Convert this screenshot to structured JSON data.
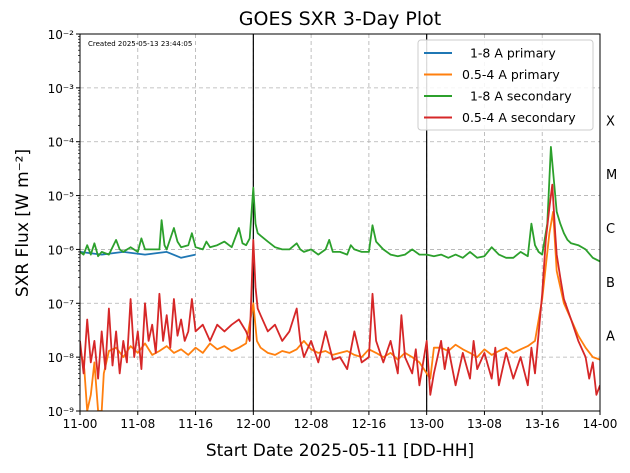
{
  "chart_data": {
    "type": "line",
    "title": "GOES SXR 3-Day Plot",
    "xlabel": "Start Date 2025-05-11 [DD-HH]",
    "ylabel": "SXR Flux [W m⁻²]",
    "created_note": "Created 2025-05-13 23:44:05",
    "yscale": "log",
    "ylim": [
      1e-09,
      0.01
    ],
    "xlim_hours": [
      0,
      72
    ],
    "grid": true,
    "legend_position": "top-right",
    "x_ticks": [
      {
        "h": 0,
        "label": "11-00"
      },
      {
        "h": 8,
        "label": "11-08"
      },
      {
        "h": 16,
        "label": "11-16"
      },
      {
        "h": 24,
        "label": "12-00"
      },
      {
        "h": 32,
        "label": "12-08"
      },
      {
        "h": 40,
        "label": "12-16"
      },
      {
        "h": 48,
        "label": "13-00"
      },
      {
        "h": 56,
        "label": "13-08"
      },
      {
        "h": 64,
        "label": "13-16"
      },
      {
        "h": 72,
        "label": "14-00"
      }
    ],
    "y_ticks": [
      {
        "exp": -9,
        "label": "10⁻⁹"
      },
      {
        "exp": -8,
        "label": "10⁻⁸"
      },
      {
        "exp": -7,
        "label": "10⁻⁷"
      },
      {
        "exp": -6,
        "label": "10⁻⁶"
      },
      {
        "exp": -5,
        "label": "10⁻⁵"
      },
      {
        "exp": -4,
        "label": "10⁻⁴"
      },
      {
        "exp": -3,
        "label": "10⁻³"
      },
      {
        "exp": -2,
        "label": "10⁻²"
      }
    ],
    "day_lines_hours": [
      24,
      48
    ],
    "flare_classes": [
      {
        "label": "X",
        "flux": 0.00025
      },
      {
        "label": "M",
        "flux": 2.5e-05
      },
      {
        "label": "C",
        "flux": 2.5e-06
      },
      {
        "label": "B",
        "flux": 2.5e-07
      },
      {
        "label": "A",
        "flux": 2.5e-08
      }
    ],
    "series": [
      {
        "name": "  1-8 A primary",
        "color": "#1f77b4",
        "points": [
          [
            0,
            9e-07
          ],
          [
            3,
            8e-07
          ],
          [
            6,
            9e-07
          ],
          [
            9,
            8e-07
          ],
          [
            12,
            9e-07
          ],
          [
            14,
            7e-07
          ],
          [
            16,
            8e-07
          ]
        ]
      },
      {
        "name": "0.5-4 A primary",
        "color": "#ff7f0e",
        "points": [
          [
            0,
            1.5e-08
          ],
          [
            0.6,
            6e-09
          ],
          [
            1,
            1e-09
          ],
          [
            1.5,
            2e-09
          ],
          [
            2,
            8e-09
          ],
          [
            2.5,
            1e-09
          ],
          [
            3,
            1e-09
          ],
          [
            3.3,
            5e-09
          ],
          [
            4,
            1.3e-08
          ],
          [
            5,
            1.5e-08
          ],
          [
            6,
            1e-08
          ],
          [
            7,
            1.6e-08
          ],
          [
            8,
            1.2e-08
          ],
          [
            9,
            1.8e-08
          ],
          [
            10,
            1.1e-08
          ],
          [
            11,
            1.3e-08
          ],
          [
            12,
            1.6e-08
          ],
          [
            13,
            1.2e-08
          ],
          [
            14,
            1.4e-08
          ],
          [
            15,
            1.1e-08
          ],
          [
            16,
            1.5e-08
          ],
          [
            17,
            1.2e-08
          ],
          [
            18,
            1.8e-08
          ],
          [
            19,
            1.4e-08
          ],
          [
            20,
            1.6e-08
          ],
          [
            21,
            1.3e-08
          ],
          [
            22,
            1.5e-08
          ],
          [
            23,
            1.8e-08
          ],
          [
            24,
            1e-07
          ],
          [
            24.5,
            2e-08
          ],
          [
            25,
            1.5e-08
          ],
          [
            26,
            1.2e-08
          ],
          [
            27,
            1.1e-08
          ],
          [
            28,
            1.3e-08
          ],
          [
            29,
            1.2e-08
          ],
          [
            30,
            1.4e-08
          ],
          [
            31,
            2e-08
          ],
          [
            32,
            1.4e-08
          ],
          [
            33,
            1.2e-08
          ],
          [
            34,
            1.3e-08
          ],
          [
            35,
            1.1e-08
          ],
          [
            36,
            1.2e-08
          ],
          [
            37,
            1.3e-08
          ],
          [
            38,
            1.1e-08
          ],
          [
            39,
            1e-08
          ],
          [
            40,
            1.4e-08
          ],
          [
            41,
            1.2e-08
          ],
          [
            42,
            1e-08
          ],
          [
            43,
            1.2e-08
          ],
          [
            44,
            9e-09
          ],
          [
            45,
            1.2e-08
          ],
          [
            46,
            1e-08
          ],
          [
            47,
            8e-09
          ],
          [
            48,
            5e-09
          ],
          [
            48.5,
            4e-09
          ],
          [
            49,
            1.5e-08
          ],
          [
            50,
            1.5e-08
          ],
          [
            51,
            1.3e-08
          ],
          [
            52,
            1.7e-08
          ],
          [
            53,
            1.4e-08
          ],
          [
            54,
            1.2e-08
          ],
          [
            55,
            1e-08
          ],
          [
            56,
            1.4e-08
          ],
          [
            57,
            1.1e-08
          ],
          [
            58,
            1.3e-08
          ],
          [
            59,
            1.5e-08
          ],
          [
            60,
            1.2e-08
          ],
          [
            61,
            1.4e-08
          ],
          [
            62,
            1.6e-08
          ],
          [
            63,
            2e-08
          ],
          [
            64,
            1.2e-07
          ],
          [
            65,
            2e-06
          ],
          [
            65.5,
            5e-06
          ],
          [
            66,
            4e-07
          ],
          [
            67,
            1e-07
          ],
          [
            68,
            5e-08
          ],
          [
            69,
            2.5e-08
          ],
          [
            70,
            1.5e-08
          ],
          [
            71,
            1e-08
          ],
          [
            72,
            9e-09
          ]
        ]
      },
      {
        "name": "  1-8 A secondary",
        "color": "#2ca02c",
        "points": [
          [
            0,
            9e-07
          ],
          [
            0.5,
            8e-07
          ],
          [
            1,
            1.2e-06
          ],
          [
            1.5,
            8e-07
          ],
          [
            2,
            1.3e-06
          ],
          [
            2.5,
            7.5e-07
          ],
          [
            3,
            9e-07
          ],
          [
            4,
            8e-07
          ],
          [
            5,
            1.5e-06
          ],
          [
            5.5,
            1e-06
          ],
          [
            6,
            9e-07
          ],
          [
            7,
            1.1e-06
          ],
          [
            8,
            9e-07
          ],
          [
            8.5,
            1.6e-06
          ],
          [
            9,
            1e-06
          ],
          [
            10,
            1e-06
          ],
          [
            11,
            1e-06
          ],
          [
            11.3,
            3.5e-06
          ],
          [
            11.7,
            1.2e-06
          ],
          [
            12,
            1e-06
          ],
          [
            13,
            2.5e-06
          ],
          [
            13.5,
            1.4e-06
          ],
          [
            14,
            1.1e-06
          ],
          [
            15,
            1.2e-06
          ],
          [
            15.5,
            2e-06
          ],
          [
            16,
            1.1e-06
          ],
          [
            17,
            1e-06
          ],
          [
            17.5,
            1.4e-06
          ],
          [
            18,
            1.1e-06
          ],
          [
            19,
            1.2e-06
          ],
          [
            20,
            1.4e-06
          ],
          [
            21,
            1.1e-06
          ],
          [
            22,
            2.5e-06
          ],
          [
            22.5,
            1.3e-06
          ],
          [
            23,
            1.2e-06
          ],
          [
            23.5,
            1.6e-06
          ],
          [
            24,
            1.4e-05
          ],
          [
            24.3,
            3e-06
          ],
          [
            24.6,
            2e-06
          ],
          [
            25,
            1.8e-06
          ],
          [
            26,
            1.4e-06
          ],
          [
            27,
            1.1e-06
          ],
          [
            28,
            1e-06
          ],
          [
            29,
            1e-06
          ],
          [
            30,
            1.3e-06
          ],
          [
            30.5,
            1e-06
          ],
          [
            31,
            9e-07
          ],
          [
            32,
            1e-06
          ],
          [
            33,
            8e-07
          ],
          [
            34,
            1e-06
          ],
          [
            34.5,
            1.5e-06
          ],
          [
            35,
            9e-07
          ],
          [
            36,
            9e-07
          ],
          [
            37,
            8e-07
          ],
          [
            37.5,
            1.2e-06
          ],
          [
            38,
            1e-06
          ],
          [
            39,
            9e-07
          ],
          [
            40,
            9e-07
          ],
          [
            40.5,
            2.8e-06
          ],
          [
            41,
            1.4e-06
          ],
          [
            42,
            1e-06
          ],
          [
            43,
            8e-07
          ],
          [
            44,
            7.5e-07
          ],
          [
            45,
            8e-07
          ],
          [
            46,
            1e-06
          ],
          [
            47,
            8e-07
          ],
          [
            48,
            8e-07
          ],
          [
            49,
            7.5e-07
          ],
          [
            50,
            8e-07
          ],
          [
            51,
            7e-07
          ],
          [
            52,
            8e-07
          ],
          [
            53,
            7e-07
          ],
          [
            54,
            9e-07
          ],
          [
            55,
            7e-07
          ],
          [
            56,
            7.5e-07
          ],
          [
            57,
            1.1e-06
          ],
          [
            58,
            8e-07
          ],
          [
            59,
            7e-07
          ],
          [
            60,
            7e-07
          ],
          [
            61,
            9e-07
          ],
          [
            62,
            7.5e-07
          ],
          [
            62.5,
            3e-06
          ],
          [
            63,
            1.2e-06
          ],
          [
            63.5,
            9e-07
          ],
          [
            64,
            8e-07
          ],
          [
            64.7,
            3e-06
          ],
          [
            65.2,
            8e-05
          ],
          [
            65.6,
            2e-05
          ],
          [
            66,
            5e-06
          ],
          [
            66.5,
            3e-06
          ],
          [
            67,
            2e-06
          ],
          [
            67.5,
            1.5e-06
          ],
          [
            68,
            1.3e-06
          ],
          [
            69,
            1.2e-06
          ],
          [
            70,
            1e-06
          ],
          [
            71,
            7e-07
          ],
          [
            72,
            6e-07
          ]
        ]
      },
      {
        "name": "0.5-4 A secondary",
        "color": "#d62728",
        "points": [
          [
            0,
            2e-08
          ],
          [
            0.5,
            5e-09
          ],
          [
            1,
            5e-08
          ],
          [
            1.5,
            8e-09
          ],
          [
            2,
            2e-08
          ],
          [
            2.5,
            4e-09
          ],
          [
            3,
            3e-08
          ],
          [
            3.5,
            6e-09
          ],
          [
            4,
            8e-08
          ],
          [
            4.5,
            7e-09
          ],
          [
            5,
            3e-08
          ],
          [
            5.5,
            5e-09
          ],
          [
            6,
            2e-08
          ],
          [
            6.5,
            8e-09
          ],
          [
            7,
            1.2e-07
          ],
          [
            7.5,
            1e-08
          ],
          [
            8,
            3e-08
          ],
          [
            8.5,
            6e-09
          ],
          [
            9,
            1e-07
          ],
          [
            9.5,
            2e-08
          ],
          [
            10,
            4e-08
          ],
          [
            10.5,
            1.2e-08
          ],
          [
            11,
            1.5e-07
          ],
          [
            11.5,
            2e-08
          ],
          [
            12,
            6e-08
          ],
          [
            12.5,
            1.5e-08
          ],
          [
            13,
            1.2e-07
          ],
          [
            13.5,
            2.5e-08
          ],
          [
            14,
            5e-08
          ],
          [
            14.5,
            2e-08
          ],
          [
            15,
            3e-08
          ],
          [
            15.5,
            1.2e-07
          ],
          [
            16,
            3e-08
          ],
          [
            17,
            4e-08
          ],
          [
            18,
            2e-08
          ],
          [
            19,
            4e-08
          ],
          [
            20,
            3e-08
          ],
          [
            21,
            4e-08
          ],
          [
            22,
            5e-08
          ],
          [
            23,
            3e-08
          ],
          [
            23.5,
            2e-08
          ],
          [
            24,
            1.5e-06
          ],
          [
            24.3,
            2e-07
          ],
          [
            24.6,
            8e-08
          ],
          [
            25,
            6e-08
          ],
          [
            26,
            3e-08
          ],
          [
            27,
            4e-08
          ],
          [
            28,
            2e-08
          ],
          [
            29,
            3e-08
          ],
          [
            30,
            8e-08
          ],
          [
            30.5,
            2e-08
          ],
          [
            31,
            1e-08
          ],
          [
            32,
            2e-08
          ],
          [
            33,
            8e-09
          ],
          [
            34,
            3e-08
          ],
          [
            35,
            9e-09
          ],
          [
            36,
            1e-08
          ],
          [
            37,
            6e-09
          ],
          [
            38,
            3e-08
          ],
          [
            39,
            8e-09
          ],
          [
            40,
            1e-08
          ],
          [
            40.5,
            1.5e-07
          ],
          [
            41,
            2e-08
          ],
          [
            42,
            8e-09
          ],
          [
            43,
            2e-08
          ],
          [
            44,
            5e-09
          ],
          [
            44.5,
            6e-08
          ],
          [
            45,
            1e-08
          ],
          [
            46,
            5e-09
          ],
          [
            46.5,
            1.4e-08
          ],
          [
            47,
            3e-09
          ],
          [
            48,
            2e-08
          ],
          [
            48.5,
            2e-09
          ],
          [
            49,
            5e-09
          ],
          [
            50,
            2e-08
          ],
          [
            50.5,
            6e-09
          ],
          [
            51,
            1.5e-08
          ],
          [
            52,
            3e-09
          ],
          [
            53,
            1.2e-08
          ],
          [
            54,
            4e-09
          ],
          [
            54.5,
            2e-08
          ],
          [
            55,
            6e-09
          ],
          [
            56,
            1.2e-08
          ],
          [
            57,
            4e-09
          ],
          [
            57.5,
            1.5e-08
          ],
          [
            58,
            3e-09
          ],
          [
            59,
            1.2e-08
          ],
          [
            60,
            4e-09
          ],
          [
            61,
            1e-08
          ],
          [
            62,
            3e-09
          ],
          [
            62.5,
            1.5e-08
          ],
          [
            63,
            5e-09
          ],
          [
            64,
            1.5e-07
          ],
          [
            64.5,
            1.5e-06
          ],
          [
            65,
            6e-06
          ],
          [
            65.4,
            1.6e-05
          ],
          [
            65.8,
            2e-06
          ],
          [
            66,
            8e-07
          ],
          [
            66.5,
            3e-07
          ],
          [
            67,
            1.2e-07
          ],
          [
            68,
            5e-08
          ],
          [
            69,
            2e-08
          ],
          [
            70,
            1e-08
          ],
          [
            70.5,
            4e-09
          ],
          [
            71,
            8e-09
          ],
          [
            71.5,
            2e-09
          ],
          [
            72,
            3e-09
          ]
        ]
      }
    ]
  }
}
